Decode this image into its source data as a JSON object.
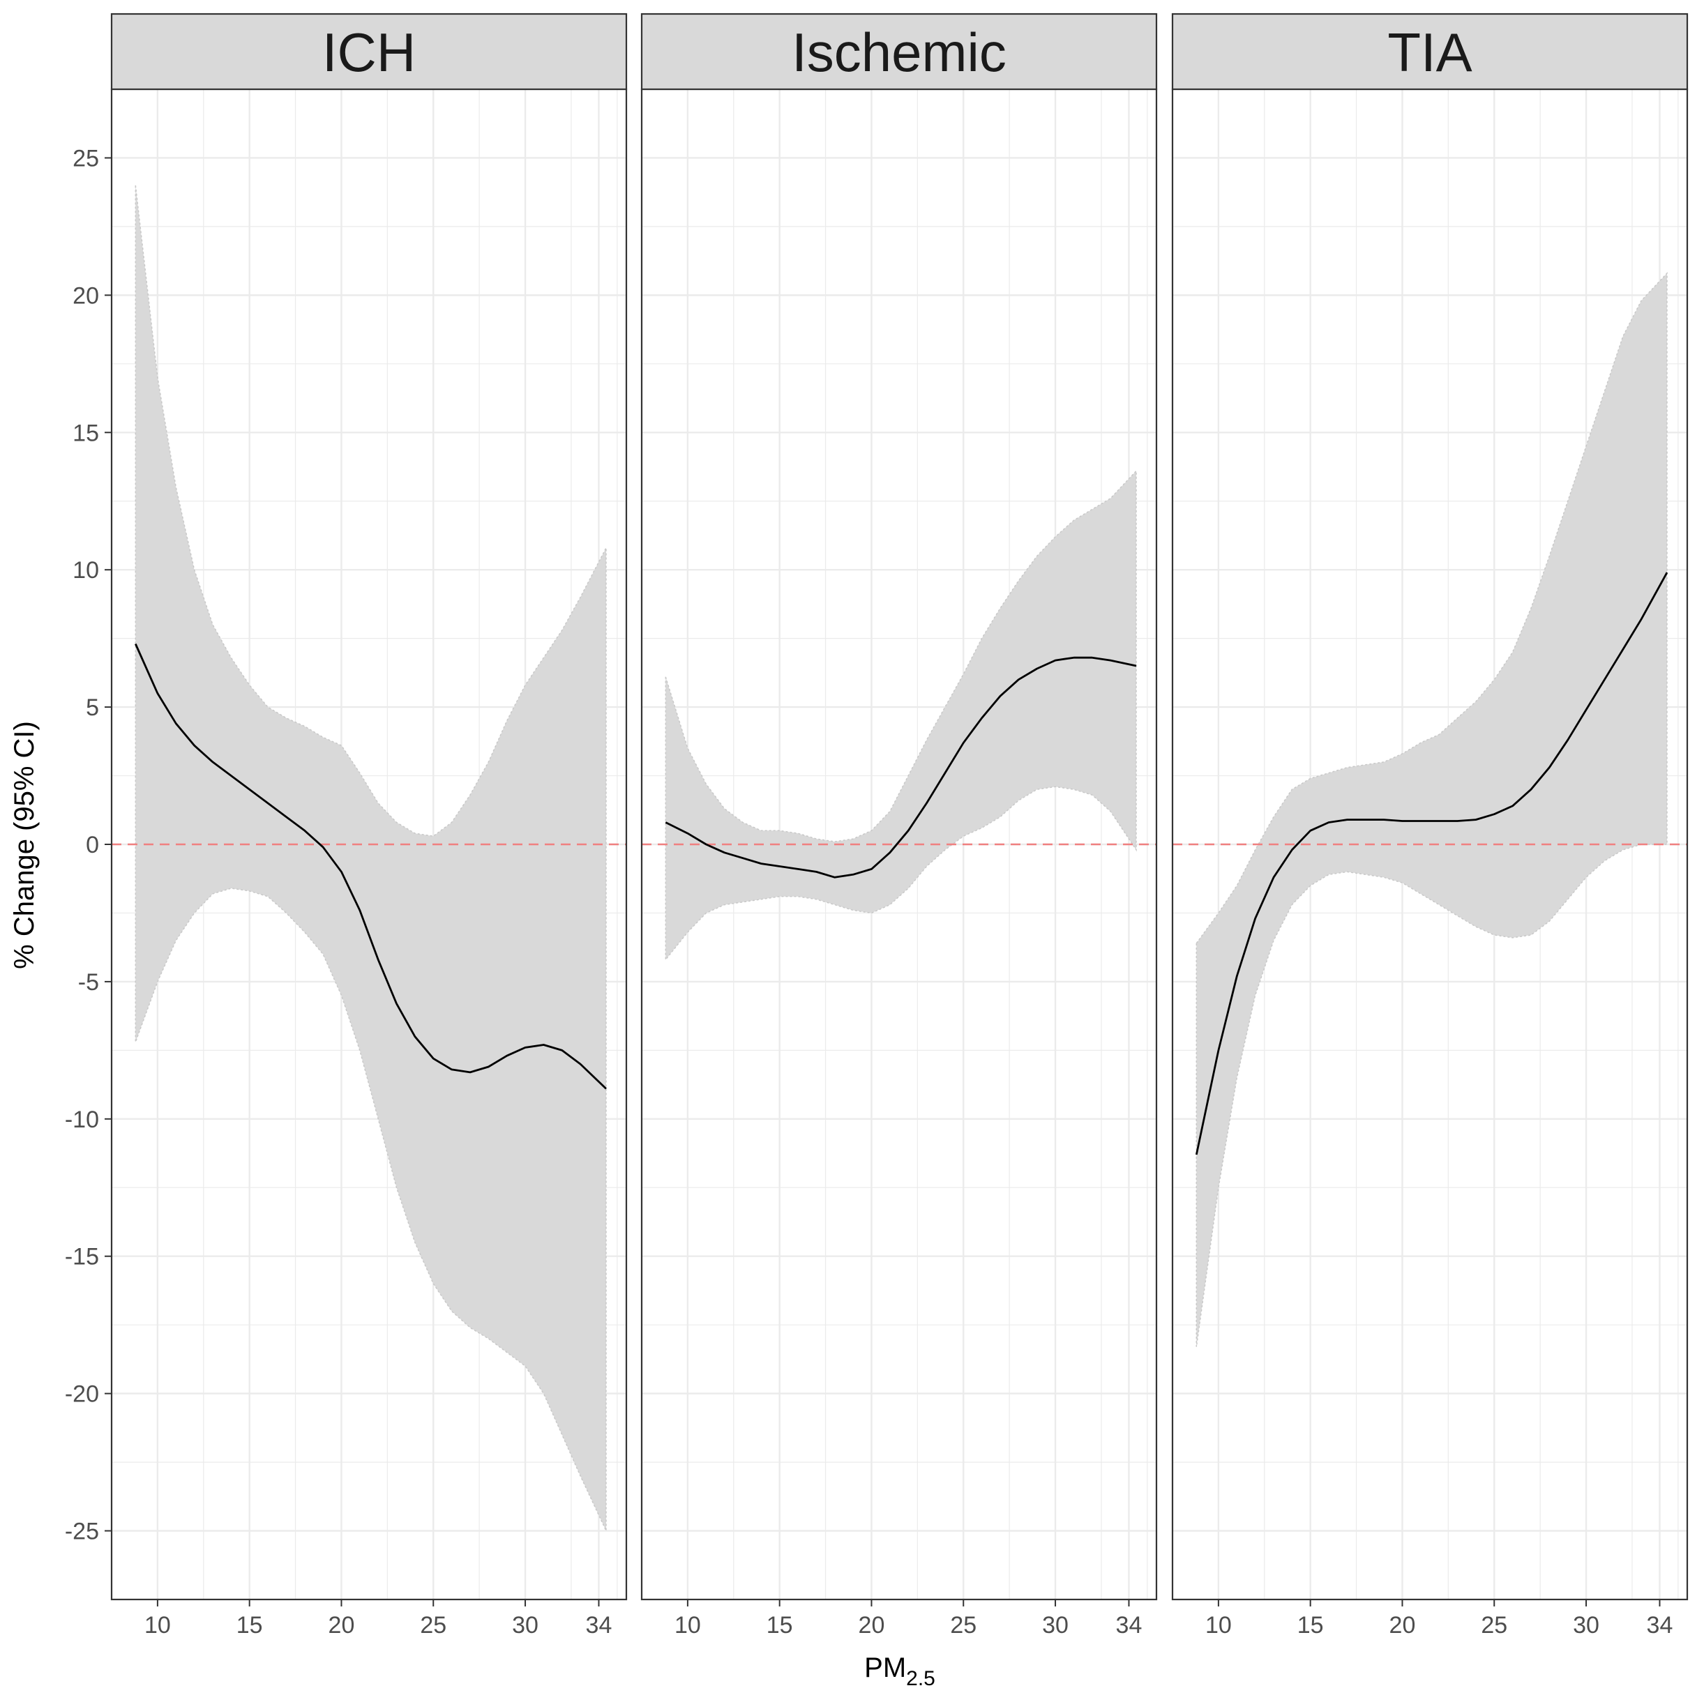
{
  "chart_data": {
    "type": "line",
    "xlabel": "PM",
    "xlabel_subscript": "2.5",
    "ylabel": "% Change (95% CI)",
    "xlim": [
      7.5,
      35.5
    ],
    "ylim": [
      -27.5,
      27.5
    ],
    "x_ticks": [
      10,
      15,
      20,
      25,
      30,
      34
    ],
    "y_ticks": [
      25,
      20,
      15,
      10,
      5,
      0,
      -5,
      -10,
      -15,
      -20,
      -25
    ],
    "grid": true,
    "reference_line": {
      "y": 0,
      "style": "dashed",
      "color": "#f08080"
    },
    "colors": {
      "line": "#000000",
      "ribbon": "#d9d9d9",
      "strip": "#d9d9d9",
      "grid": "#ebebeb",
      "panel_border": "#333333"
    },
    "panels": [
      {
        "name": "ICH",
        "x": [
          8.8,
          10,
          11,
          12,
          13,
          14,
          15,
          16,
          17,
          18,
          19,
          20,
          21,
          22,
          23,
          24,
          25,
          26,
          27,
          28,
          29,
          30,
          31,
          32,
          33,
          34.4
        ],
        "y": [
          7.3,
          5.5,
          4.4,
          3.6,
          3.0,
          2.5,
          2.0,
          1.5,
          1.0,
          0.5,
          -0.1,
          -1.0,
          -2.4,
          -4.2,
          -5.8,
          -7.0,
          -7.8,
          -8.2,
          -8.3,
          -8.1,
          -7.7,
          -7.4,
          -7.3,
          -7.5,
          -8.0,
          -8.9
        ],
        "lower": [
          -7.2,
          -5.0,
          -3.5,
          -2.5,
          -1.8,
          -1.6,
          -1.7,
          -1.9,
          -2.5,
          -3.2,
          -4.0,
          -5.5,
          -7.5,
          -10.0,
          -12.5,
          -14.5,
          -16.0,
          -17.0,
          -17.6,
          -18.0,
          -18.5,
          -19.0,
          -20.0,
          -21.5,
          -23.0,
          -25.0
        ],
        "upper": [
          24.0,
          17.0,
          13.0,
          10.0,
          8.0,
          6.8,
          5.8,
          5.0,
          4.6,
          4.3,
          3.9,
          3.6,
          2.6,
          1.5,
          0.8,
          0.4,
          0.3,
          0.8,
          1.8,
          3.0,
          4.5,
          5.8,
          6.8,
          7.8,
          9.0,
          10.8
        ]
      },
      {
        "name": "Ischemic",
        "x": [
          8.8,
          10,
          11,
          12,
          13,
          14,
          15,
          16,
          17,
          18,
          19,
          20,
          21,
          22,
          23,
          24,
          25,
          26,
          27,
          28,
          29,
          30,
          31,
          32,
          33,
          34.4
        ],
        "y": [
          0.8,
          0.4,
          0.0,
          -0.3,
          -0.5,
          -0.7,
          -0.8,
          -0.9,
          -1.0,
          -1.2,
          -1.1,
          -0.9,
          -0.3,
          0.5,
          1.5,
          2.6,
          3.7,
          4.6,
          5.4,
          6.0,
          6.4,
          6.7,
          6.8,
          6.8,
          6.7,
          6.5
        ],
        "lower": [
          -4.2,
          -3.2,
          -2.5,
          -2.2,
          -2.1,
          -2.0,
          -1.9,
          -1.9,
          -2.0,
          -2.2,
          -2.4,
          -2.5,
          -2.2,
          -1.6,
          -0.8,
          -0.2,
          0.3,
          0.6,
          1.0,
          1.6,
          2.0,
          2.1,
          2.0,
          1.8,
          1.2,
          -0.2
        ],
        "upper": [
          6.1,
          3.5,
          2.2,
          1.3,
          0.8,
          0.5,
          0.5,
          0.4,
          0.2,
          0.1,
          0.2,
          0.5,
          1.2,
          2.5,
          3.8,
          5.0,
          6.2,
          7.5,
          8.6,
          9.6,
          10.5,
          11.2,
          11.8,
          12.2,
          12.6,
          13.6
        ]
      },
      {
        "name": "TIA",
        "x": [
          8.8,
          10,
          11,
          12,
          13,
          14,
          15,
          16,
          17,
          18,
          19,
          20,
          21,
          22,
          23,
          24,
          25,
          26,
          27,
          28,
          29,
          30,
          31,
          32,
          33,
          34.4
        ],
        "y": [
          -11.3,
          -7.5,
          -4.8,
          -2.7,
          -1.2,
          -0.2,
          0.5,
          0.8,
          0.9,
          0.9,
          0.9,
          0.85,
          0.85,
          0.85,
          0.85,
          0.9,
          1.1,
          1.4,
          2.0,
          2.8,
          3.8,
          4.9,
          6.0,
          7.1,
          8.2,
          9.9
        ],
        "lower": [
          -18.3,
          -12.5,
          -8.5,
          -5.5,
          -3.5,
          -2.2,
          -1.5,
          -1.1,
          -1.0,
          -1.1,
          -1.2,
          -1.4,
          -1.8,
          -2.2,
          -2.6,
          -3.0,
          -3.3,
          -3.4,
          -3.3,
          -2.8,
          -2.0,
          -1.2,
          -0.6,
          -0.2,
          0.0,
          0.0
        ],
        "upper": [
          -3.6,
          -2.5,
          -1.5,
          -0.2,
          1.0,
          2.0,
          2.4,
          2.6,
          2.8,
          2.9,
          3.0,
          3.3,
          3.7,
          4.0,
          4.6,
          5.2,
          6.0,
          7.0,
          8.6,
          10.5,
          12.5,
          14.5,
          16.5,
          18.5,
          19.8,
          20.8
        ]
      }
    ]
  }
}
